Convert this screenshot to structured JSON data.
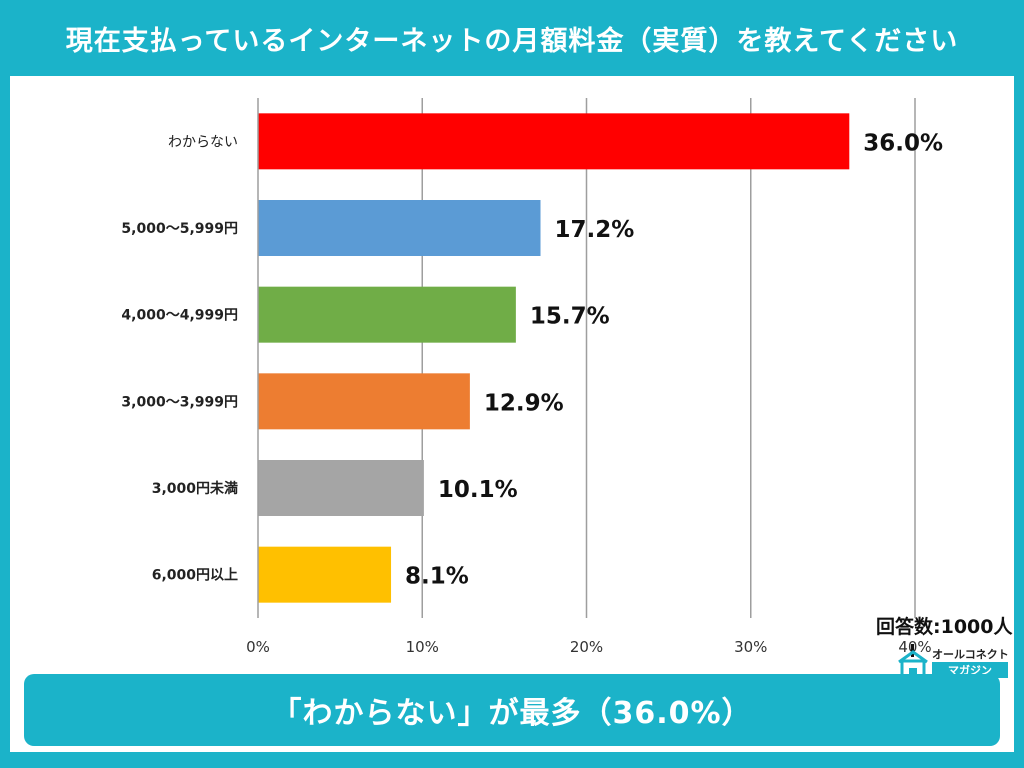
{
  "header": {
    "title": "現在支払っているインターネットの月額料金（実質）を教えてください"
  },
  "chart_data": {
    "type": "bar",
    "orientation": "horizontal",
    "categories": [
      "わからない",
      "5,000～5,999円",
      "4,000～4,999円",
      "3,000～3,999円",
      "3,000円未満",
      "6,000円以上"
    ],
    "values": [
      36.0,
      17.2,
      15.7,
      12.9,
      10.1,
      8.1
    ],
    "value_labels": [
      "36.0%",
      "17.2%",
      "15.7%",
      "12.9%",
      "10.1%",
      "8.1%"
    ],
    "bar_colors": [
      "#ff0000",
      "#5b9bd5",
      "#70ad47",
      "#ed7d31",
      "#a5a5a5",
      "#ffc000"
    ],
    "xlim": [
      0,
      40
    ],
    "xticks": [
      0,
      10,
      20,
      30,
      40
    ],
    "xtick_labels": [
      "0%",
      "10%",
      "20%",
      "30%",
      "40%"
    ],
    "grid": true,
    "title": "",
    "xlabel": "",
    "ylabel": ""
  },
  "respondents": "回答数:1000人",
  "logo": {
    "top": "オールコネクト",
    "bottom": "マガジン",
    "icon": "house-logo-icon"
  },
  "summary": {
    "text": "「わからない」が最多（36.0%）"
  }
}
